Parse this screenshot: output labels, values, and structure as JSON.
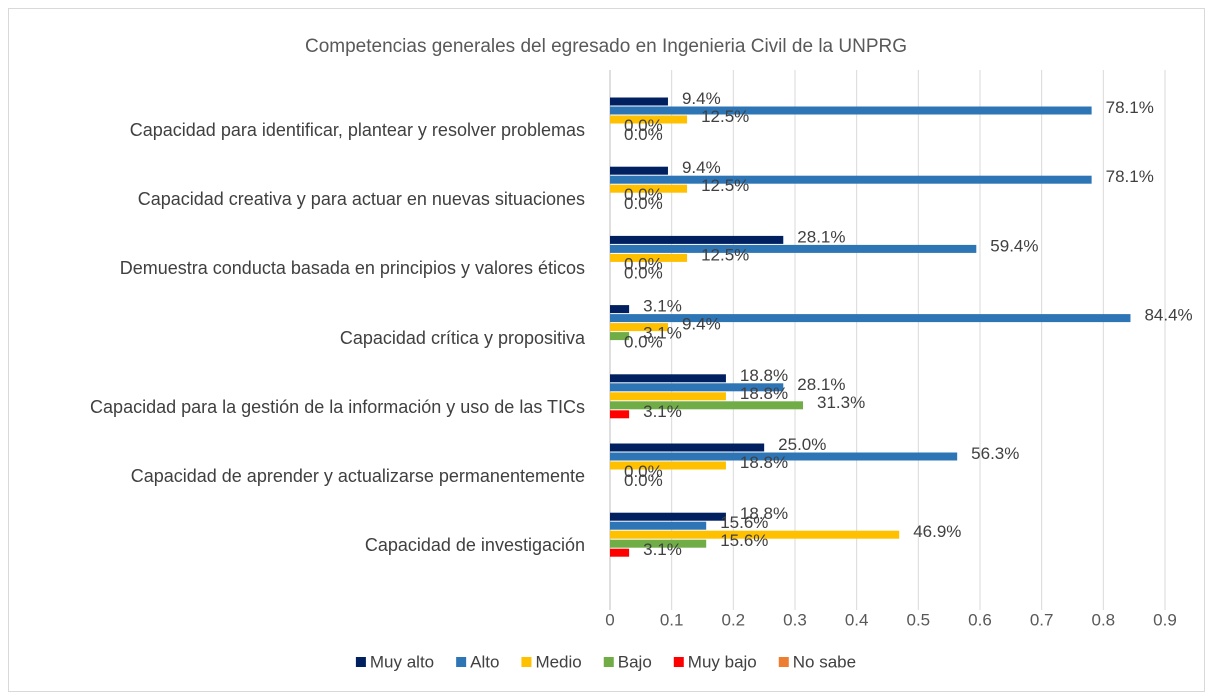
{
  "chart_data": {
    "type": "hbar",
    "title": "Competencias generales del egresado en Ingenieria Civil de la UNPRG",
    "categories": [
      "Capacidad para identificar, plantear y resolver problemas",
      "Capacidad creativa y para actuar en nuevas situaciones",
      "Demuestra conducta basada en principios y valores éticos",
      "Capacidad crítica y propositiva",
      "Capacidad para la gestión de la información y uso de las TICs",
      "Capacidad de aprender y actualizarse permanentemente",
      "Capacidad de investigación"
    ],
    "series": [
      {
        "name": "Muy alto",
        "color": "#002060",
        "values": [
          0.094,
          0.094,
          0.281,
          0.031,
          0.188,
          0.25,
          0.188
        ],
        "value_labels": [
          "9.4%",
          "9.4%",
          "28.1%",
          "3.1%",
          "18.8%",
          "25.0%",
          "18.8%"
        ]
      },
      {
        "name": "Alto",
        "color": "#2e75b6",
        "values": [
          0.781,
          0.781,
          0.594,
          0.844,
          0.281,
          0.563,
          0.156
        ],
        "value_labels": [
          "78.1%",
          "78.1%",
          "59.4%",
          "84.4%",
          "28.1%",
          "56.3%",
          "15.6%"
        ]
      },
      {
        "name": "Medio",
        "color": "#ffc000",
        "values": [
          0.125,
          0.125,
          0.125,
          0.094,
          0.188,
          0.188,
          0.469
        ],
        "value_labels": [
          "12.5%",
          "12.5%",
          "12.5%",
          "9.4%",
          "18.8%",
          "18.8%",
          "46.9%"
        ]
      },
      {
        "name": "Bajo",
        "color": "#70ad47",
        "values": [
          0,
          0,
          0,
          0.031,
          0.313,
          0,
          0.156
        ],
        "value_labels": [
          "0.0%",
          "0.0%",
          "0.0%",
          "3.1%",
          "31.3%",
          "0.0%",
          "15.6%"
        ]
      },
      {
        "name": "Muy bajo",
        "color": "#ff0000",
        "values": [
          0,
          0,
          0,
          0,
          0.031,
          0,
          0.031
        ],
        "value_labels": [
          "0.0%",
          "0.0%",
          "0.0%",
          "0.0%",
          "3.1%",
          "0.0%",
          "3.1%"
        ]
      },
      {
        "name": "No sabe",
        "color": "#ed7d31",
        "values": [
          null,
          null,
          null,
          null,
          null,
          null,
          null
        ],
        "value_labels": [
          null,
          null,
          null,
          null,
          null,
          null,
          null
        ]
      }
    ],
    "xlim": [
      0,
      0.9
    ],
    "xticks": [
      0,
      0.1,
      0.2,
      0.3,
      0.4,
      0.5,
      0.6,
      0.7,
      0.8,
      0.9
    ],
    "grid": true,
    "legend": "bottom"
  }
}
